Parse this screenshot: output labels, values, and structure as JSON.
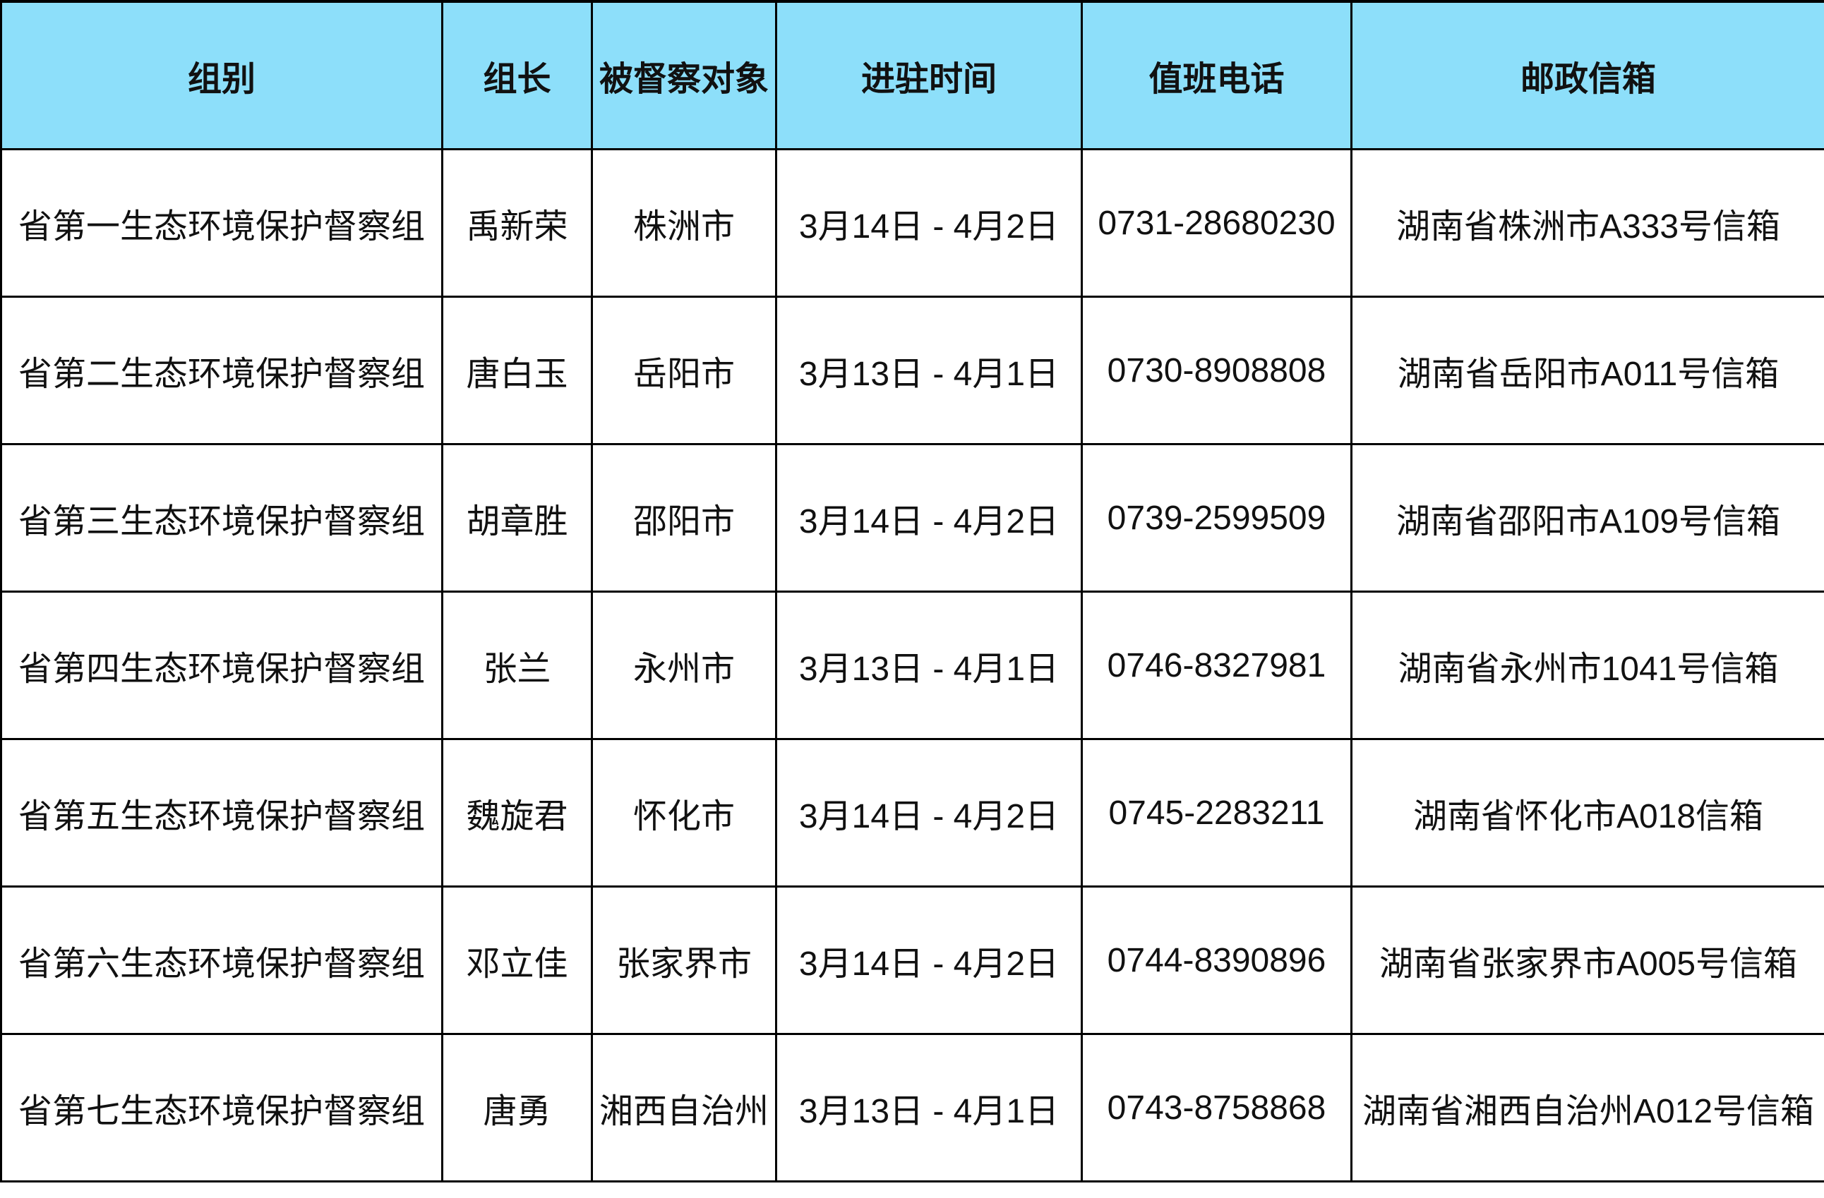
{
  "table": {
    "header_color": "#8ddffa",
    "headers": [
      "组别",
      "组长",
      "被督察对象",
      "进驻时间",
      "值班电话",
      "邮政信箱"
    ],
    "rows": [
      [
        "省第一生态环境保护督察组",
        "禹新荣",
        "株洲市",
        "3月14日 - 4月2日",
        "0731-28680230",
        "湖南省株洲市A333号信箱"
      ],
      [
        "省第二生态环境保护督察组",
        "唐白玉",
        "岳阳市",
        "3月13日 - 4月1日",
        "0730-8908808",
        "湖南省岳阳市A011号信箱"
      ],
      [
        "省第三生态环境保护督察组",
        "胡章胜",
        "邵阳市",
        "3月14日 - 4月2日",
        "0739-2599509",
        "湖南省邵阳市A109号信箱"
      ],
      [
        "省第四生态环境保护督察组",
        "张兰",
        "永州市",
        "3月13日 - 4月1日",
        "0746-8327981",
        "湖南省永州市1041号信箱"
      ],
      [
        "省第五生态环境保护督察组",
        "魏旋君",
        "怀化市",
        "3月14日 - 4月2日",
        "0745-2283211",
        "湖南省怀化市A018信箱"
      ],
      [
        "省第六生态环境保护督察组",
        "邓立佳",
        "张家界市",
        "3月14日 - 4月2日",
        "0744-8390896",
        "湖南省张家界市A005号信箱"
      ],
      [
        "省第七生态环境保护督察组",
        "唐勇",
        "湘西自治州",
        "3月13日 - 4月1日",
        "0743-8758868",
        "湖南省湘西自治州A012号信箱"
      ]
    ]
  }
}
